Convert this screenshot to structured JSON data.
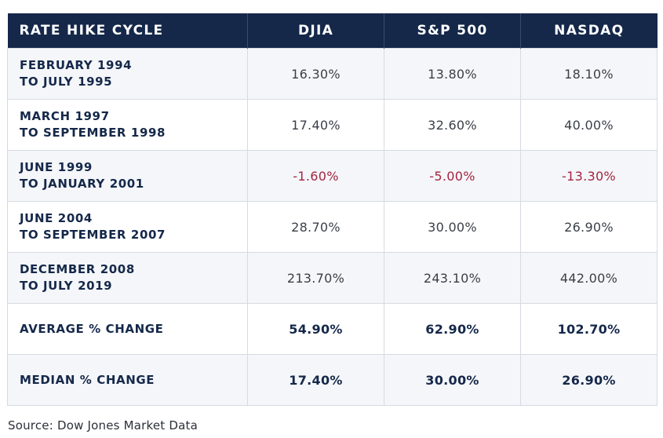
{
  "header": {
    "col1": "RATE HIKE CYCLE",
    "col2": "DJIA",
    "col3": "S&P 500",
    "col4": "NASDAQ"
  },
  "rows": [
    {
      "line1": "FEBRUARY 1994",
      "line2": "TO JULY 1995",
      "djia": "16.30%",
      "sp500": "13.80%",
      "nasdaq": "18.10%"
    },
    {
      "line1": "MARCH 1997",
      "line2": "TO SEPTEMBER 1998",
      "djia": "17.40%",
      "sp500": "32.60%",
      "nasdaq": "40.00%"
    },
    {
      "line1": "JUNE 1999",
      "line2": "TO JANUARY 2001",
      "djia": "-1.60%",
      "sp500": "-5.00%",
      "nasdaq": "-13.30%"
    },
    {
      "line1": "JUNE 2004",
      "line2": "TO SEPTEMBER 2007",
      "djia": "28.70%",
      "sp500": "30.00%",
      "nasdaq": "26.90%"
    },
    {
      "line1": "DECEMBER 2008",
      "line2": "TO JULY 2019",
      "djia": "213.70%",
      "sp500": "243.10%",
      "nasdaq": "442.00%"
    }
  ],
  "average": {
    "label": "AVERAGE % CHANGE",
    "djia": "54.90%",
    "sp500": "62.90%",
    "nasdaq": "102.70%"
  },
  "median": {
    "label": "MEDIAN % CHANGE",
    "djia": "17.40%",
    "sp500": "30.00%",
    "nasdaq": "26.90%"
  },
  "source": "Source: Dow Jones Market Data",
  "colors": {
    "header_bg": "#15284a",
    "negative": "#a32541",
    "alt_row": "#f4f6f9"
  }
}
